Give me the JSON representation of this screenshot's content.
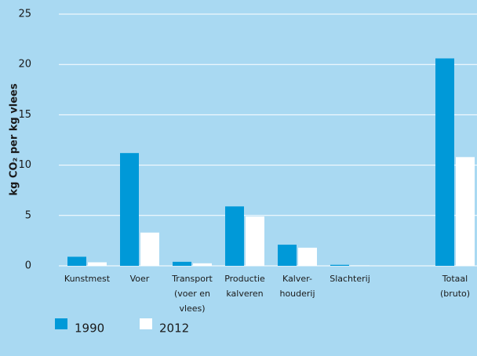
{
  "chart_data": {
    "type": "bar",
    "ylabel": "kg CO₂ per kg vlees",
    "categories": [
      [
        "Kunstmest"
      ],
      [
        "Voer"
      ],
      [
        "Transport",
        "(voer en",
        "vlees)"
      ],
      [
        "Productie",
        "kalveren"
      ],
      [
        "Kalver-",
        "houderij"
      ],
      [
        "Slachterij"
      ],
      null,
      [
        "Totaal",
        "(bruto)"
      ]
    ],
    "series": [
      {
        "name": "1990",
        "color": "#0099d8",
        "values": [
          0.9,
          11.2,
          0.4,
          5.9,
          2.1,
          0.1,
          null,
          20.6
        ]
      },
      {
        "name": "2012",
        "color": "#ffffff",
        "values": [
          0.35,
          3.3,
          0.25,
          4.9,
          1.8,
          0.05,
          null,
          10.8
        ]
      }
    ],
    "ylim": [
      0,
      25
    ],
    "yticks": [
      0,
      5,
      10,
      15,
      20,
      25
    ],
    "grid": true,
    "legend": "bottom-left"
  }
}
